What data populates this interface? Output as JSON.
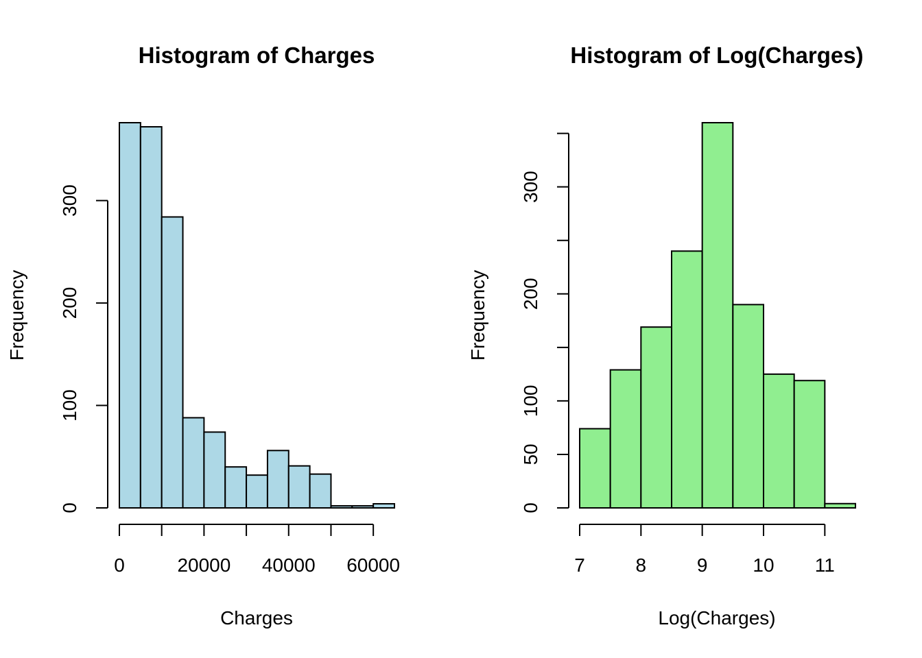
{
  "chart_data": [
    {
      "type": "bar",
      "title": "Histogram of Charges",
      "xlabel": "Charges",
      "ylabel": "Frequency",
      "color": "#ADD8E6",
      "bin_edges": [
        0,
        5000,
        10000,
        15000,
        20000,
        25000,
        30000,
        35000,
        40000,
        45000,
        50000,
        55000,
        60000,
        65000
      ],
      "values": [
        376,
        372,
        284,
        88,
        74,
        40,
        32,
        56,
        41,
        33,
        2,
        2,
        4
      ],
      "xlim": [
        0,
        65000
      ],
      "ylim": [
        0,
        376
      ],
      "x_ticks": [
        0,
        20000,
        40000,
        60000
      ],
      "x_tick_labels": [
        "0",
        "20000",
        "40000",
        "60000"
      ],
      "x_minor_ticks": [
        0,
        10000,
        20000,
        30000,
        40000,
        50000,
        60000
      ],
      "y_ticks": [
        0,
        100,
        200,
        300
      ],
      "y_tick_labels": [
        "0",
        "100",
        "200",
        "300"
      ],
      "y_minor_ticks": [
        0,
        100,
        200,
        300
      ],
      "grid": false
    },
    {
      "type": "bar",
      "title": "Histogram of Log(Charges)",
      "xlabel": "Log(Charges)",
      "ylabel": "Frequency",
      "color": "#90EE90",
      "bin_edges": [
        7,
        7.5,
        8,
        8.5,
        9,
        9.5,
        10,
        10.5,
        11,
        11.5
      ],
      "values": [
        74,
        129,
        169,
        240,
        360,
        190,
        125,
        119,
        4
      ],
      "xlim": [
        7,
        11.5
      ],
      "ylim": [
        0,
        360
      ],
      "x_ticks": [
        7,
        8,
        9,
        10,
        11
      ],
      "x_tick_labels": [
        "7",
        "8",
        "9",
        "10",
        "11"
      ],
      "x_minor_ticks": [
        7,
        8,
        9,
        10,
        11
      ],
      "y_ticks": [
        0,
        50,
        100,
        200,
        300
      ],
      "y_tick_labels": [
        "0",
        "50",
        "100",
        "200",
        "300"
      ],
      "y_minor_ticks": [
        0,
        50,
        100,
        150,
        200,
        250,
        300,
        350
      ],
      "grid": false
    }
  ]
}
